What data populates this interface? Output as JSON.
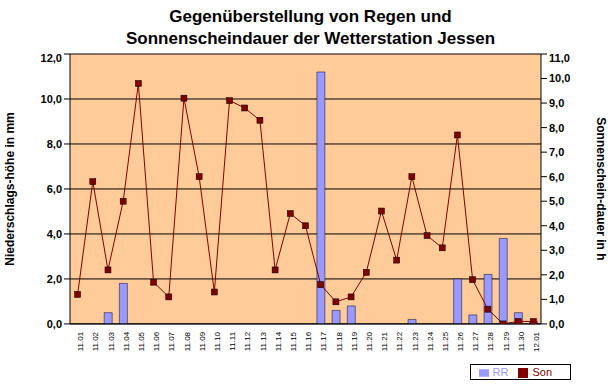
{
  "chart_data": {
    "type": "bar_line",
    "title": "Gegenüberstellung von Regen und\nSonnenscheindauer der Wetterstation Jessen",
    "y_label": "Niederschlags-höhe in mm",
    "y2_label": "Sonnenschein-dauer in h",
    "categories": [
      "11.01",
      "11.02",
      "11.03",
      "11.04",
      "11.05",
      "11.06",
      "11.07",
      "11.08",
      "11.09",
      "11.10",
      "11.11",
      "11.12",
      "11.13",
      "11.14",
      "11.15",
      "11.16",
      "11.17",
      "11.18",
      "11.19",
      "11.20",
      "11.21",
      "11.22",
      "11.23",
      "11.24",
      "11.25",
      "11.26",
      "11.27",
      "11.28",
      "11.29",
      "11.30",
      "12.01"
    ],
    "series": [
      {
        "name": "RR",
        "type": "bar",
        "color": "#9999ff",
        "values": [
          0,
          0,
          0.5,
          1.8,
          0,
          0,
          0,
          0,
          0,
          0,
          0,
          0,
          0,
          0,
          0,
          0,
          11.2,
          0.6,
          0.8,
          0,
          0,
          0,
          0.2,
          0,
          0,
          2.0,
          0.4,
          2.2,
          3.8,
          0.5,
          0.1
        ]
      },
      {
        "name": "Son",
        "type": "line",
        "axis": "y2",
        "color": "#800000",
        "marker": "square",
        "values": [
          1.2,
          5.8,
          2.2,
          5.0,
          9.8,
          1.7,
          1.1,
          9.2,
          6.0,
          1.3,
          9.1,
          8.8,
          8.3,
          2.2,
          4.5,
          4.0,
          1.6,
          0.9,
          1.1,
          2.1,
          4.6,
          2.6,
          6.0,
          3.6,
          3.1,
          7.7,
          1.8,
          0.6,
          0.0,
          0.1,
          0.1
        ]
      }
    ],
    "ylim": [
      0,
      12
    ],
    "yticks": [
      {
        "value": 0,
        "label": "0,0"
      },
      {
        "value": 2,
        "label": "2,0"
      },
      {
        "value": 4,
        "label": "4,0"
      },
      {
        "value": 6,
        "label": "6,0"
      },
      {
        "value": 8,
        "label": "8,0"
      },
      {
        "value": 10,
        "label": "10,0"
      },
      {
        "value": 12,
        "label": "12,0"
      }
    ],
    "y2lim": [
      0,
      11
    ],
    "y2ticks": [
      {
        "value": 0,
        "label": "0,0"
      },
      {
        "value": 1,
        "label": "1,0"
      },
      {
        "value": 2,
        "label": "2,0"
      },
      {
        "value": 3,
        "label": "3,0"
      },
      {
        "value": 4,
        "label": "4,0"
      },
      {
        "value": 5,
        "label": "5,0"
      },
      {
        "value": 6,
        "label": "6,0"
      },
      {
        "value": 7,
        "label": "7,0"
      },
      {
        "value": 8,
        "label": "8,0"
      },
      {
        "value": 9,
        "label": "9,0"
      },
      {
        "value": 10,
        "label": "10,0"
      },
      {
        "value": 11,
        "label": "11,0"
      }
    ],
    "grid": true,
    "legend": "bottom-right"
  }
}
